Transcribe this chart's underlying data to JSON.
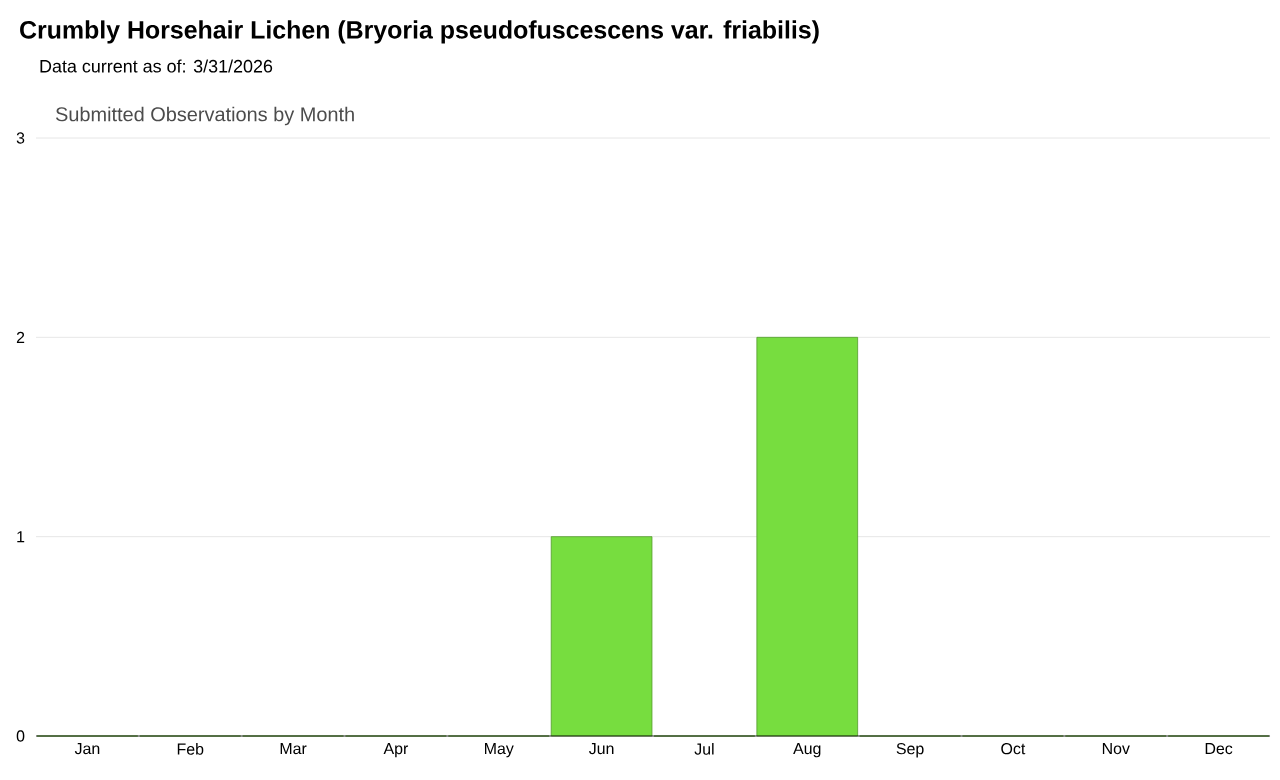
{
  "chart_data": {
    "type": "bar",
    "title": "Crumbly Horsehair Lichen   (Bryoria pseudofuscescens var. friabilis)",
    "subtitle": "Submitted Observations by Month",
    "annotations": [
      "Data current as of: 3/31/2026"
    ],
    "categories": [
      "Jan",
      "Feb",
      "Mar",
      "Apr",
      "May",
      "Jun",
      "Jul",
      "Aug",
      "Sep",
      "Oct",
      "Nov",
      "Dec"
    ],
    "values": [
      0,
      0,
      0,
      0,
      0,
      1,
      0,
      2,
      0,
      0,
      0,
      0
    ],
    "color": "#77dd3f",
    "ylim": [
      0,
      3
    ],
    "yticks": [
      0,
      1,
      2,
      3
    ],
    "grid": "y"
  }
}
